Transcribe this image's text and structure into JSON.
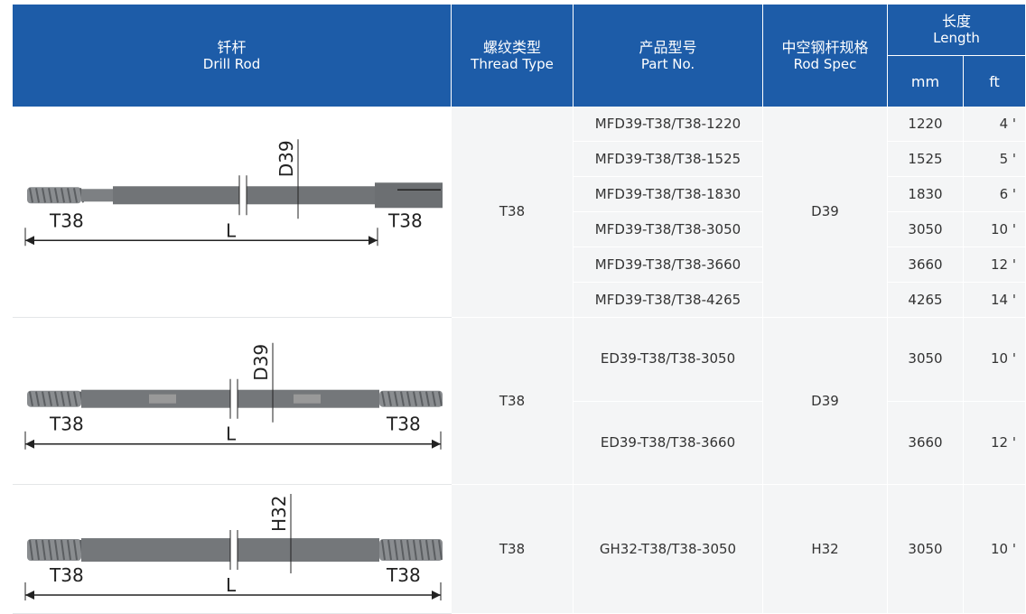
{
  "table": {
    "header": {
      "drill_rod": {
        "zh": "钎杆",
        "en": "Drill Rod"
      },
      "thread_type": {
        "zh": "螺纹类型",
        "en": "Thread Type"
      },
      "part_no": {
        "zh": "产品型号",
        "en": "Part No."
      },
      "rod_spec": {
        "zh": "中空钢杆规格",
        "en": "Rod Spec"
      },
      "length": {
        "zh": "长度",
        "en": "Length",
        "mm": "mm",
        "ft": "ft"
      }
    },
    "groups": [
      {
        "drawing": {
          "left": "T38",
          "right": "T38",
          "length": "L",
          "diameter": "D39"
        },
        "thread": "T38",
        "spec": "D39",
        "rows": [
          {
            "part": "MFD39-T38/T38-1220",
            "mm": 1220,
            "ft": "4 '"
          },
          {
            "part": "MFD39-T38/T38-1525",
            "mm": 1525,
            "ft": "5 '"
          },
          {
            "part": "MFD39-T38/T38-1830",
            "mm": 1830,
            "ft": "6 '"
          },
          {
            "part": "MFD39-T38/T38-3050",
            "mm": 3050,
            "ft": "10 '"
          },
          {
            "part": "MFD39-T38/T38-3660",
            "mm": 3660,
            "ft": "12 '"
          },
          {
            "part": "MFD39-T38/T38-4265",
            "mm": 4265,
            "ft": "14 '"
          }
        ]
      },
      {
        "drawing": {
          "left": "T38",
          "right": "T38",
          "length": "L",
          "diameter": "D39"
        },
        "thread": "T38",
        "spec": "D39",
        "rows": [
          {
            "part": "ED39-T38/T38-3050",
            "mm": 3050,
            "ft": "10 '"
          },
          {
            "part": "ED39-T38/T38-3660",
            "mm": 3660,
            "ft": "12 '"
          }
        ]
      },
      {
        "drawing": {
          "left": "T38",
          "right": "T38",
          "length": "L",
          "diameter": "H32"
        },
        "thread": "T38",
        "spec": "H32",
        "rows": [
          {
            "part": "GH32-T38/T38-3050",
            "mm": 3050,
            "ft": "10 '"
          }
        ]
      }
    ]
  }
}
